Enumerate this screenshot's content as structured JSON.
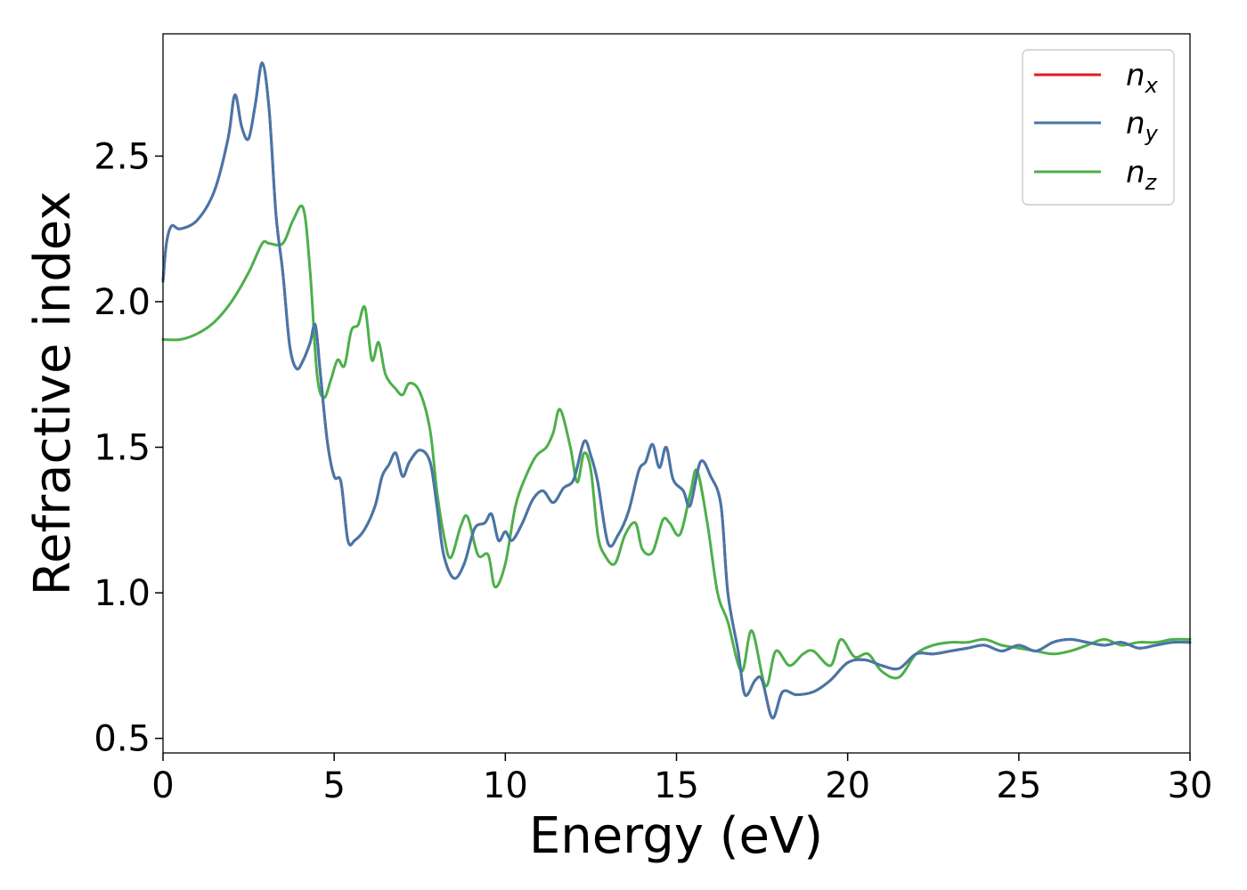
{
  "chart_data": {
    "type": "line",
    "title": "",
    "xlabel": "Energy (eV)",
    "ylabel": "Refractive index",
    "xlim": [
      0,
      30
    ],
    "ylim": [
      0.45,
      2.92
    ],
    "xticks": [
      0,
      5,
      10,
      15,
      20,
      25,
      30
    ],
    "yticks": [
      0.5,
      1.0,
      1.5,
      2.0,
      2.5
    ],
    "xtick_labels": [
      "0",
      "5",
      "10",
      "15",
      "20",
      "25",
      "30"
    ],
    "ytick_labels": [
      "0.5",
      "1.0",
      "1.5",
      "2.0",
      "2.5"
    ],
    "grid": false,
    "legend_position": "top-right",
    "series": [
      {
        "name": "n_x",
        "label_main": "n",
        "label_sub": "x",
        "color": "#e41a1c",
        "points": [
          [
            0,
            2.07
          ],
          [
            0.1,
            2.2
          ],
          [
            0.25,
            2.26
          ],
          [
            0.5,
            2.25
          ],
          [
            1.0,
            2.28
          ],
          [
            1.5,
            2.38
          ],
          [
            1.9,
            2.56
          ],
          [
            2.1,
            2.71
          ],
          [
            2.3,
            2.6
          ],
          [
            2.5,
            2.56
          ],
          [
            2.7,
            2.68
          ],
          [
            2.9,
            2.82
          ],
          [
            3.1,
            2.66
          ],
          [
            3.3,
            2.3
          ],
          [
            3.5,
            2.1
          ],
          [
            3.7,
            1.85
          ],
          [
            3.9,
            1.77
          ],
          [
            4.1,
            1.8
          ],
          [
            4.3,
            1.86
          ],
          [
            4.45,
            1.92
          ],
          [
            4.6,
            1.75
          ],
          [
            4.8,
            1.52
          ],
          [
            5.0,
            1.4
          ],
          [
            5.2,
            1.38
          ],
          [
            5.4,
            1.18
          ],
          [
            5.6,
            1.18
          ],
          [
            5.9,
            1.22
          ],
          [
            6.2,
            1.3
          ],
          [
            6.4,
            1.4
          ],
          [
            6.6,
            1.44
          ],
          [
            6.8,
            1.48
          ],
          [
            7.0,
            1.4
          ],
          [
            7.2,
            1.45
          ],
          [
            7.5,
            1.49
          ],
          [
            7.8,
            1.45
          ],
          [
            8.0,
            1.3
          ],
          [
            8.2,
            1.13
          ],
          [
            8.5,
            1.05
          ],
          [
            8.8,
            1.1
          ],
          [
            9.1,
            1.22
          ],
          [
            9.4,
            1.24
          ],
          [
            9.6,
            1.27
          ],
          [
            9.8,
            1.18
          ],
          [
            10.0,
            1.21
          ],
          [
            10.2,
            1.18
          ],
          [
            10.5,
            1.24
          ],
          [
            10.8,
            1.32
          ],
          [
            11.1,
            1.35
          ],
          [
            11.4,
            1.31
          ],
          [
            11.7,
            1.36
          ],
          [
            12.0,
            1.39
          ],
          [
            12.3,
            1.52
          ],
          [
            12.5,
            1.47
          ],
          [
            12.7,
            1.38
          ],
          [
            13.0,
            1.17
          ],
          [
            13.3,
            1.2
          ],
          [
            13.6,
            1.28
          ],
          [
            13.9,
            1.42
          ],
          [
            14.1,
            1.45
          ],
          [
            14.3,
            1.51
          ],
          [
            14.5,
            1.43
          ],
          [
            14.7,
            1.5
          ],
          [
            14.9,
            1.39
          ],
          [
            15.2,
            1.35
          ],
          [
            15.4,
            1.3
          ],
          [
            15.7,
            1.45
          ],
          [
            16.0,
            1.4
          ],
          [
            16.3,
            1.3
          ],
          [
            16.5,
            1.0
          ],
          [
            16.8,
            0.8
          ],
          [
            17.0,
            0.65
          ],
          [
            17.3,
            0.7
          ],
          [
            17.5,
            0.7
          ],
          [
            17.8,
            0.57
          ],
          [
            18.1,
            0.66
          ],
          [
            18.5,
            0.65
          ],
          [
            19.0,
            0.66
          ],
          [
            19.5,
            0.7
          ],
          [
            20.0,
            0.76
          ],
          [
            20.5,
            0.77
          ],
          [
            21.0,
            0.75
          ],
          [
            21.5,
            0.74
          ],
          [
            22.0,
            0.79
          ],
          [
            22.5,
            0.79
          ],
          [
            23.0,
            0.8
          ],
          [
            23.5,
            0.81
          ],
          [
            24.0,
            0.82
          ],
          [
            24.5,
            0.8
          ],
          [
            25.0,
            0.82
          ],
          [
            25.5,
            0.8
          ],
          [
            26.0,
            0.83
          ],
          [
            26.5,
            0.84
          ],
          [
            27.0,
            0.83
          ],
          [
            27.5,
            0.82
          ],
          [
            28.0,
            0.83
          ],
          [
            28.5,
            0.81
          ],
          [
            29.0,
            0.82
          ],
          [
            29.5,
            0.83
          ],
          [
            30.0,
            0.83
          ]
        ]
      },
      {
        "name": "n_y",
        "label_main": "n",
        "label_sub": "y",
        "color": "#4477aa",
        "points": [
          [
            0,
            2.07
          ],
          [
            0.1,
            2.2
          ],
          [
            0.25,
            2.26
          ],
          [
            0.5,
            2.25
          ],
          [
            1.0,
            2.28
          ],
          [
            1.5,
            2.38
          ],
          [
            1.9,
            2.56
          ],
          [
            2.1,
            2.71
          ],
          [
            2.3,
            2.6
          ],
          [
            2.5,
            2.56
          ],
          [
            2.7,
            2.68
          ],
          [
            2.9,
            2.82
          ],
          [
            3.1,
            2.66
          ],
          [
            3.3,
            2.3
          ],
          [
            3.5,
            2.1
          ],
          [
            3.7,
            1.85
          ],
          [
            3.9,
            1.77
          ],
          [
            4.1,
            1.8
          ],
          [
            4.3,
            1.86
          ],
          [
            4.45,
            1.92
          ],
          [
            4.6,
            1.75
          ],
          [
            4.8,
            1.52
          ],
          [
            5.0,
            1.4
          ],
          [
            5.2,
            1.38
          ],
          [
            5.4,
            1.18
          ],
          [
            5.6,
            1.18
          ],
          [
            5.9,
            1.22
          ],
          [
            6.2,
            1.3
          ],
          [
            6.4,
            1.4
          ],
          [
            6.6,
            1.44
          ],
          [
            6.8,
            1.48
          ],
          [
            7.0,
            1.4
          ],
          [
            7.2,
            1.45
          ],
          [
            7.5,
            1.49
          ],
          [
            7.8,
            1.45
          ],
          [
            8.0,
            1.3
          ],
          [
            8.2,
            1.13
          ],
          [
            8.5,
            1.05
          ],
          [
            8.8,
            1.1
          ],
          [
            9.1,
            1.22
          ],
          [
            9.4,
            1.24
          ],
          [
            9.6,
            1.27
          ],
          [
            9.8,
            1.18
          ],
          [
            10.0,
            1.21
          ],
          [
            10.2,
            1.18
          ],
          [
            10.5,
            1.24
          ],
          [
            10.8,
            1.32
          ],
          [
            11.1,
            1.35
          ],
          [
            11.4,
            1.31
          ],
          [
            11.7,
            1.36
          ],
          [
            12.0,
            1.39
          ],
          [
            12.3,
            1.52
          ],
          [
            12.5,
            1.47
          ],
          [
            12.7,
            1.38
          ],
          [
            13.0,
            1.17
          ],
          [
            13.3,
            1.2
          ],
          [
            13.6,
            1.28
          ],
          [
            13.9,
            1.42
          ],
          [
            14.1,
            1.45
          ],
          [
            14.3,
            1.51
          ],
          [
            14.5,
            1.43
          ],
          [
            14.7,
            1.5
          ],
          [
            14.9,
            1.39
          ],
          [
            15.2,
            1.35
          ],
          [
            15.4,
            1.3
          ],
          [
            15.7,
            1.45
          ],
          [
            16.0,
            1.4
          ],
          [
            16.3,
            1.3
          ],
          [
            16.5,
            1.0
          ],
          [
            16.8,
            0.8
          ],
          [
            17.0,
            0.65
          ],
          [
            17.3,
            0.7
          ],
          [
            17.5,
            0.7
          ],
          [
            17.8,
            0.57
          ],
          [
            18.1,
            0.66
          ],
          [
            18.5,
            0.65
          ],
          [
            19.0,
            0.66
          ],
          [
            19.5,
            0.7
          ],
          [
            20.0,
            0.76
          ],
          [
            20.5,
            0.77
          ],
          [
            21.0,
            0.75
          ],
          [
            21.5,
            0.74
          ],
          [
            22.0,
            0.79
          ],
          [
            22.5,
            0.79
          ],
          [
            23.0,
            0.8
          ],
          [
            23.5,
            0.81
          ],
          [
            24.0,
            0.82
          ],
          [
            24.5,
            0.8
          ],
          [
            25.0,
            0.82
          ],
          [
            25.5,
            0.8
          ],
          [
            26.0,
            0.83
          ],
          [
            26.5,
            0.84
          ],
          [
            27.0,
            0.83
          ],
          [
            27.5,
            0.82
          ],
          [
            28.0,
            0.83
          ],
          [
            28.5,
            0.81
          ],
          [
            29.0,
            0.82
          ],
          [
            29.5,
            0.83
          ],
          [
            30.0,
            0.83
          ]
        ]
      },
      {
        "name": "n_z",
        "label_main": "n",
        "label_sub": "z",
        "color": "#4daf4a",
        "points": [
          [
            0,
            1.87
          ],
          [
            0.5,
            1.87
          ],
          [
            1.0,
            1.89
          ],
          [
            1.5,
            1.93
          ],
          [
            2.0,
            2.0
          ],
          [
            2.5,
            2.1
          ],
          [
            2.9,
            2.2
          ],
          [
            3.1,
            2.2
          ],
          [
            3.5,
            2.2
          ],
          [
            3.8,
            2.28
          ],
          [
            4.1,
            2.32
          ],
          [
            4.3,
            2.1
          ],
          [
            4.5,
            1.75
          ],
          [
            4.7,
            1.67
          ],
          [
            4.9,
            1.73
          ],
          [
            5.1,
            1.8
          ],
          [
            5.3,
            1.78
          ],
          [
            5.5,
            1.9
          ],
          [
            5.7,
            1.92
          ],
          [
            5.9,
            1.98
          ],
          [
            6.1,
            1.8
          ],
          [
            6.3,
            1.86
          ],
          [
            6.5,
            1.75
          ],
          [
            6.8,
            1.7
          ],
          [
            7.0,
            1.68
          ],
          [
            7.2,
            1.72
          ],
          [
            7.5,
            1.69
          ],
          [
            7.8,
            1.56
          ],
          [
            8.0,
            1.35
          ],
          [
            8.2,
            1.2
          ],
          [
            8.4,
            1.12
          ],
          [
            8.7,
            1.23
          ],
          [
            8.9,
            1.26
          ],
          [
            9.2,
            1.13
          ],
          [
            9.5,
            1.13
          ],
          [
            9.7,
            1.02
          ],
          [
            10.0,
            1.1
          ],
          [
            10.3,
            1.3
          ],
          [
            10.6,
            1.4
          ],
          [
            10.9,
            1.47
          ],
          [
            11.2,
            1.5
          ],
          [
            11.4,
            1.55
          ],
          [
            11.6,
            1.63
          ],
          [
            11.9,
            1.5
          ],
          [
            12.1,
            1.38
          ],
          [
            12.3,
            1.48
          ],
          [
            12.5,
            1.42
          ],
          [
            12.7,
            1.2
          ],
          [
            12.9,
            1.13
          ],
          [
            13.2,
            1.1
          ],
          [
            13.5,
            1.2
          ],
          [
            13.8,
            1.24
          ],
          [
            14.0,
            1.15
          ],
          [
            14.3,
            1.14
          ],
          [
            14.6,
            1.25
          ],
          [
            14.8,
            1.24
          ],
          [
            15.1,
            1.2
          ],
          [
            15.4,
            1.34
          ],
          [
            15.6,
            1.42
          ],
          [
            15.9,
            1.24
          ],
          [
            16.2,
            1.0
          ],
          [
            16.5,
            0.9
          ],
          [
            16.9,
            0.73
          ],
          [
            17.2,
            0.87
          ],
          [
            17.6,
            0.68
          ],
          [
            17.9,
            0.8
          ],
          [
            18.3,
            0.75
          ],
          [
            18.7,
            0.79
          ],
          [
            19.0,
            0.8
          ],
          [
            19.5,
            0.75
          ],
          [
            19.8,
            0.84
          ],
          [
            20.2,
            0.78
          ],
          [
            20.6,
            0.79
          ],
          [
            21.0,
            0.73
          ],
          [
            21.5,
            0.71
          ],
          [
            22.0,
            0.79
          ],
          [
            22.5,
            0.82
          ],
          [
            23.0,
            0.83
          ],
          [
            23.5,
            0.83
          ],
          [
            24.0,
            0.84
          ],
          [
            24.5,
            0.82
          ],
          [
            25.0,
            0.81
          ],
          [
            25.5,
            0.8
          ],
          [
            26.0,
            0.79
          ],
          [
            26.5,
            0.8
          ],
          [
            27.0,
            0.82
          ],
          [
            27.5,
            0.84
          ],
          [
            28.0,
            0.82
          ],
          [
            28.5,
            0.83
          ],
          [
            29.0,
            0.83
          ],
          [
            29.5,
            0.84
          ],
          [
            30.0,
            0.84
          ]
        ]
      }
    ]
  }
}
